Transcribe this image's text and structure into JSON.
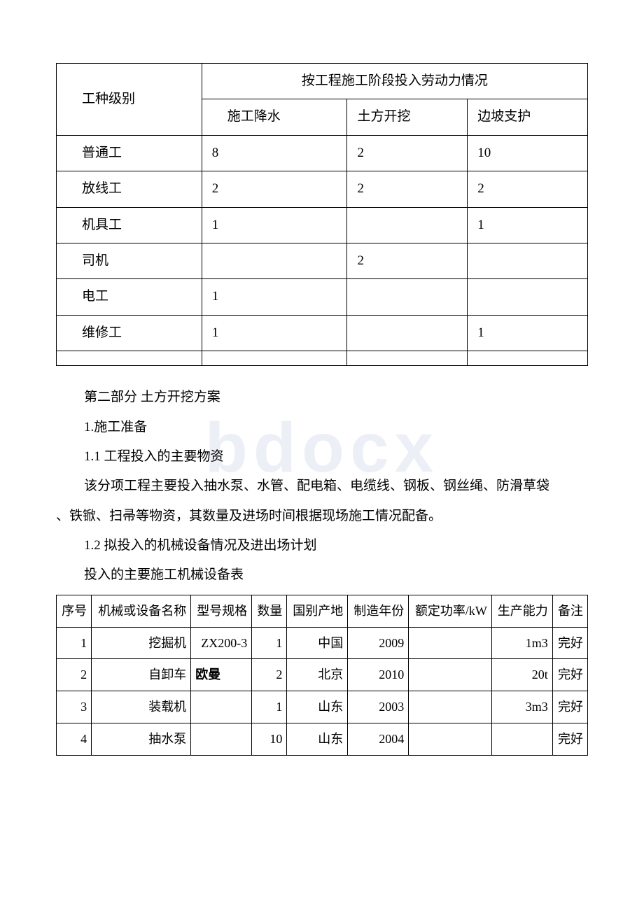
{
  "table1": {
    "header_col1": "工种级别",
    "header_merged": "按工程施工阶段投入劳动力情况",
    "subheader1": "施工降水",
    "subheader2": "土方开挖",
    "subheader3": "边坡支护",
    "rows": [
      {
        "name": "普通工",
        "v1": "8",
        "v2": "2",
        "v3": "10"
      },
      {
        "name": "放线工",
        "v1": "2",
        "v2": "2",
        "v3": "2"
      },
      {
        "name": "机具工",
        "v1": "1",
        "v2": "",
        "v3": "1"
      },
      {
        "name": "司机",
        "v1": "",
        "v2": "2",
        "v3": ""
      },
      {
        "name": "电工",
        "v1": "1",
        "v2": "",
        "v3": ""
      },
      {
        "name": "维修工",
        "v1": "1",
        "v2": "",
        "v3": "1"
      },
      {
        "name": "",
        "v1": "",
        "v2": "",
        "v3": ""
      }
    ]
  },
  "text": {
    "section2_title": "第二部分 土方开挖方案",
    "s1": "1.施工准备",
    "s11": "1.1 工程投入的主要物资",
    "s11_body_a": "该分项工程主要投入抽水泵、水管、配电箱、电缆线、钢板、钢丝绳、防滑草袋",
    "s11_body_b": "、铁锨、扫帚等物资，其数量及进场时间根据现场施工情况配备。",
    "s12": "1.2 拟投入的机械设备情况及进出场计划",
    "s12_table_caption": "投入的主要施工机械设备表"
  },
  "table2": {
    "headers": {
      "h1": "序号",
      "h2": "机械或设备名称",
      "h3": "型号规格",
      "h4": "数量",
      "h5": "国别产地",
      "h6": "制造年份",
      "h7": "额定功率/kW",
      "h8": "生产能力",
      "h9": "备注"
    },
    "rows": [
      {
        "c1": "1",
        "c2": "挖掘机",
        "c3": "ZX200-3",
        "c4": "1",
        "c5": "中国",
        "c6": "2009",
        "c7": "",
        "c8": "1m3",
        "c9": "完好"
      },
      {
        "c1": "2",
        "c2": "自卸车",
        "c3": "欧曼",
        "c4": "2",
        "c5": "北京",
        "c6": "2010",
        "c7": "",
        "c8": "20t",
        "c9": "完好"
      },
      {
        "c1": "3",
        "c2": "装载机",
        "c3": "",
        "c4": "1",
        "c5": "山东",
        "c6": "2003",
        "c7": "",
        "c8": "3m3",
        "c9": "完好"
      },
      {
        "c1": "4",
        "c2": "抽水泵",
        "c3": "",
        "c4": "10",
        "c5": "山东",
        "c6": "2004",
        "c7": "",
        "c8": "",
        "c9": "完好"
      }
    ]
  }
}
